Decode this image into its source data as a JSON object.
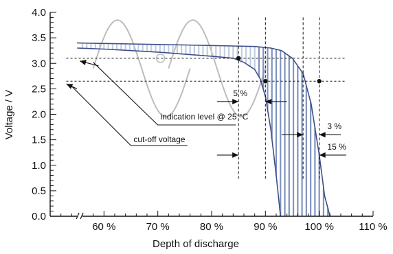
{
  "chart_data": {
    "type": "line",
    "xlabel": "Depth of discharge",
    "ylabel": "Voltage / V",
    "xlim": [
      50,
      110
    ],
    "ylim": [
      0,
      4
    ],
    "x_ticks": [
      "60 %",
      "70 %",
      "80 %",
      "90 %",
      "100 %",
      "110 %"
    ],
    "x_tick_values": [
      60,
      70,
      80,
      90,
      100,
      110
    ],
    "y_ticks": [
      "0.0",
      "0.5",
      "1.0",
      "1.5",
      "2.0",
      "2.5",
      "3.0",
      "3.5",
      "4.0"
    ],
    "y_tick_values": [
      0,
      0.5,
      1,
      1.5,
      2,
      2.5,
      3,
      3.5,
      4
    ],
    "axis_break": true,
    "grid": false,
    "colors": {
      "curve_band": "#7f93bf",
      "curve_light": "#c3cde3",
      "ghost": "#bdbdbd",
      "ink": "#111111"
    },
    "annotations": [
      {
        "label": "indication level @ 25 °C",
        "voltage": 3.1
      },
      {
        "label": "cut-off voltage",
        "voltage": 2.65
      },
      {
        "label": "5 %",
        "from": 85,
        "to": 90
      },
      {
        "label": "3 %",
        "from": 97,
        "to": 100
      },
      {
        "label": "15 %",
        "from": 85,
        "to": 100
      }
    ],
    "reference_lines": {
      "voltages": [
        3.1,
        2.65
      ],
      "dod": [
        85,
        90,
        97,
        100
      ]
    },
    "series": [
      {
        "x": [
          55,
          60,
          65,
          70,
          75,
          80,
          84,
          88,
          91,
          93,
          95,
          97,
          98.5,
          100,
          101,
          102
        ],
        "y": [
          3.4,
          3.39,
          3.38,
          3.37,
          3.36,
          3.35,
          3.34,
          3.33,
          3.3,
          3.25,
          3.1,
          2.8,
          2.2,
          1.2,
          0.4,
          0
        ]
      },
      {
        "x": [
          55,
          60,
          65,
          70,
          75,
          80,
          84,
          86,
          88,
          89,
          90,
          91,
          92,
          92.8
        ],
        "y": [
          3.3,
          3.28,
          3.25,
          3.22,
          3.18,
          3.14,
          3.1,
          3.02,
          2.88,
          2.7,
          2.35,
          1.7,
          0.8,
          0
        ]
      }
    ]
  }
}
